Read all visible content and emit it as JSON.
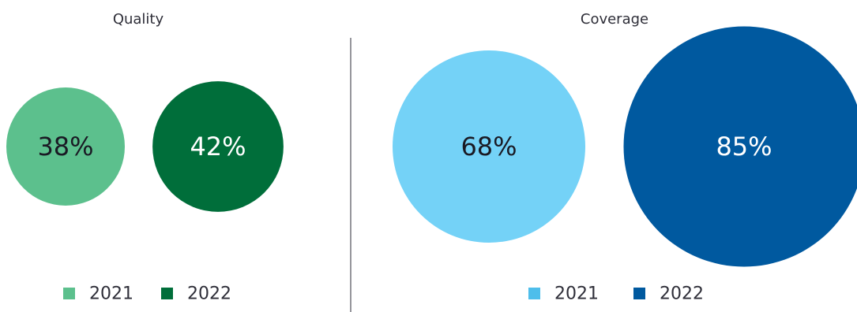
{
  "chart_data": [
    {
      "type": "bubble",
      "title": "Quality",
      "categories": [
        "2021",
        "2022"
      ],
      "values": [
        38,
        42
      ],
      "unit": "%",
      "colors": [
        "#5cc08d",
        "#006e3a"
      ],
      "label_colors": [
        "#1a1a24",
        "#ffffff"
      ],
      "legend": {
        "placement": "bottom",
        "items": [
          {
            "label": "2021",
            "color": "#5cc08d"
          },
          {
            "label": "2022",
            "color": "#006e3a"
          }
        ]
      }
    },
    {
      "type": "bubble",
      "title": "Coverage",
      "categories": [
        "2021",
        "2022"
      ],
      "values": [
        68,
        85
      ],
      "unit": "%",
      "colors": [
        "#74d2f7",
        "#00599f"
      ],
      "label_colors": [
        "#1a1a24",
        "#ffffff"
      ],
      "legend": {
        "placement": "bottom",
        "items": [
          {
            "label": "2021",
            "color": "#4ebeeb"
          },
          {
            "label": "2022",
            "color": "#00599f"
          }
        ]
      }
    }
  ]
}
